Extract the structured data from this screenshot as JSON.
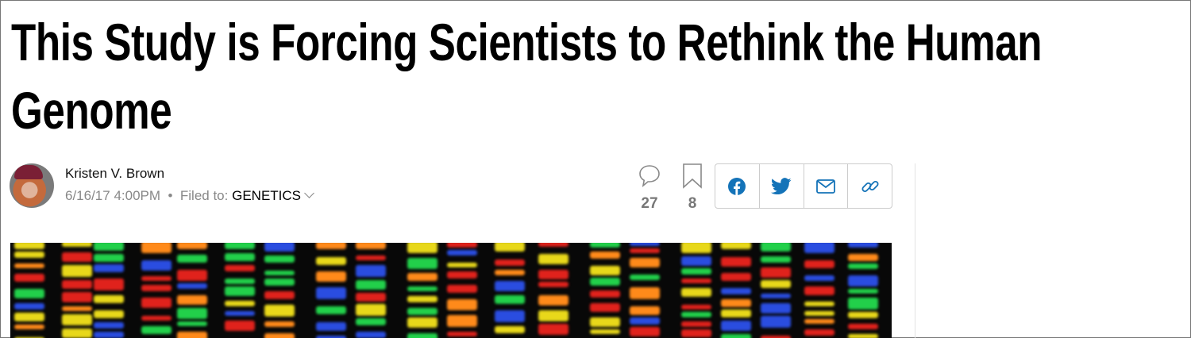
{
  "article": {
    "title": "This Study is Forcing Scientists to Rethink the Human Genome",
    "author": "Kristen V. Brown",
    "timestamp": "6/16/17 4:00PM",
    "separator": "•",
    "filed_label": "Filed to:",
    "filed_tag": "GENETICS"
  },
  "stats": {
    "comments": "27",
    "bookmarks": "8"
  },
  "share": {
    "icons": [
      "facebook-icon",
      "twitter-icon",
      "email-icon",
      "link-icon"
    ],
    "color": "#1473b8"
  },
  "colors": {
    "band_colors": [
      "#22d04a",
      "#e0221c",
      "#e8d81a",
      "#2a4de0",
      "#ff8a1a"
    ]
  }
}
